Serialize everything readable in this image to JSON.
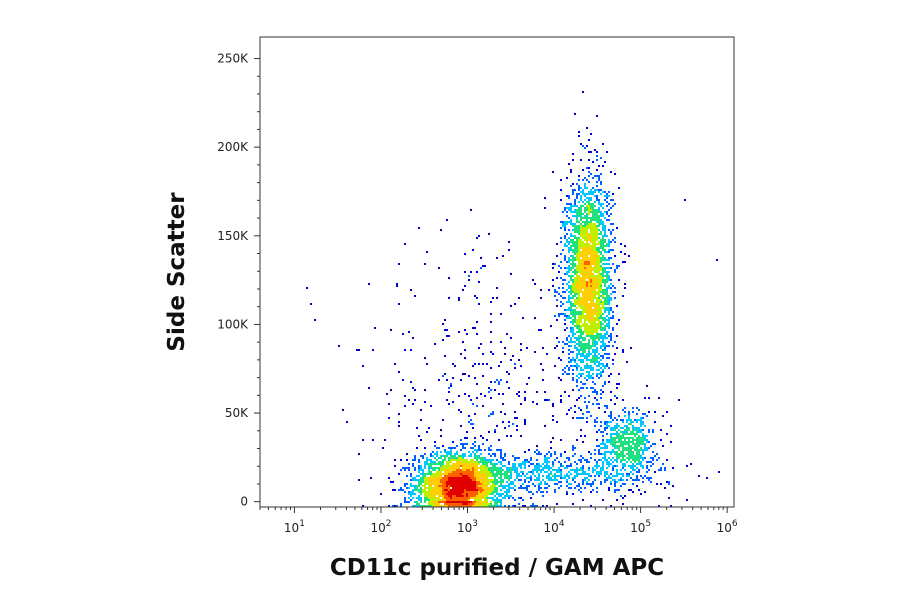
{
  "chart_data": {
    "type": "scatter",
    "style": "density pseudocolor dot plot",
    "xlabel": "CD11c purified / GAM APC",
    "ylabel": "Side Scatter",
    "x_scale": "log",
    "xlim": [
      4,
      1200000
    ],
    "x_ticks": [
      {
        "base": "10",
        "exp": "1",
        "value": 10
      },
      {
        "base": "10",
        "exp": "2",
        "value": 100
      },
      {
        "base": "10",
        "exp": "3",
        "value": 1000
      },
      {
        "base": "10",
        "exp": "4",
        "value": 10000
      },
      {
        "base": "10",
        "exp": "5",
        "value": 100000
      },
      {
        "base": "10",
        "exp": "6",
        "value": 1000000
      }
    ],
    "y_scale": "linear",
    "ylim": [
      -3000,
      262144
    ],
    "y_ticks": [
      {
        "label": "0",
        "value": 0
      },
      {
        "label": "50K",
        "value": 50000
      },
      {
        "label": "100K",
        "value": 100000
      },
      {
        "label": "150K",
        "value": 150000
      },
      {
        "label": "200K",
        "value": 200000
      },
      {
        "label": "250K",
        "value": 250000
      }
    ],
    "colormap": [
      "#0000cc",
      "#0060ff",
      "#00c8ff",
      "#20e080",
      "#c0f000",
      "#ffd000",
      "#ff6000",
      "#e00000"
    ],
    "populations": [
      {
        "x_center": 800,
        "y_center": 9000,
        "x_spread_decades": 0.25,
        "y_spread": 9000,
        "events": 3200
      },
      {
        "x_center": 25000,
        "y_center": 125000,
        "x_spread_decades": 0.13,
        "y_spread": 28000,
        "events": 3200
      },
      {
        "x_center": 70000,
        "y_center": 33000,
        "x_spread_decades": 0.16,
        "y_spread": 9000,
        "events": 600
      },
      {
        "x_center": 12000,
        "y_center": 16000,
        "x_spread_decades": 0.6,
        "y_spread": 6000,
        "events": 700
      },
      {
        "x_center": 2000,
        "y_center": 60000,
        "x_spread_decades": 0.8,
        "y_spread": 45000,
        "events": 500
      }
    ],
    "grid": false,
    "legend": "none"
  }
}
